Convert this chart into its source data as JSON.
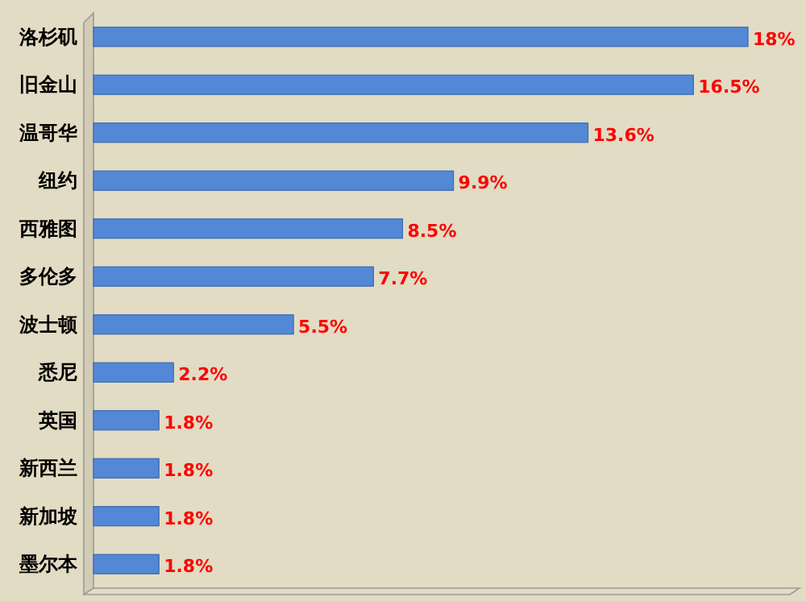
{
  "chart_data": {
    "type": "bar",
    "orientation": "horizontal",
    "categories": [
      "洛杉矶",
      "旧金山",
      "温哥华",
      "纽约",
      "西雅图",
      "多伦多",
      "波士顿",
      "悉尼",
      "英国",
      "新西兰",
      "新加坡",
      "墨尔本"
    ],
    "values": [
      18,
      16.5,
      13.6,
      9.9,
      8.5,
      7.7,
      5.5,
      2.2,
      1.8,
      1.8,
      1.8,
      1.8
    ],
    "value_labels": [
      "18%",
      "16.5%",
      "13.6%",
      "9.9%",
      "8.5%",
      "7.7%",
      "5.5%",
      "2.2%",
      "1.8%",
      "1.8%",
      "1.8%",
      "1.8%"
    ],
    "color": "#5288d6"
  }
}
